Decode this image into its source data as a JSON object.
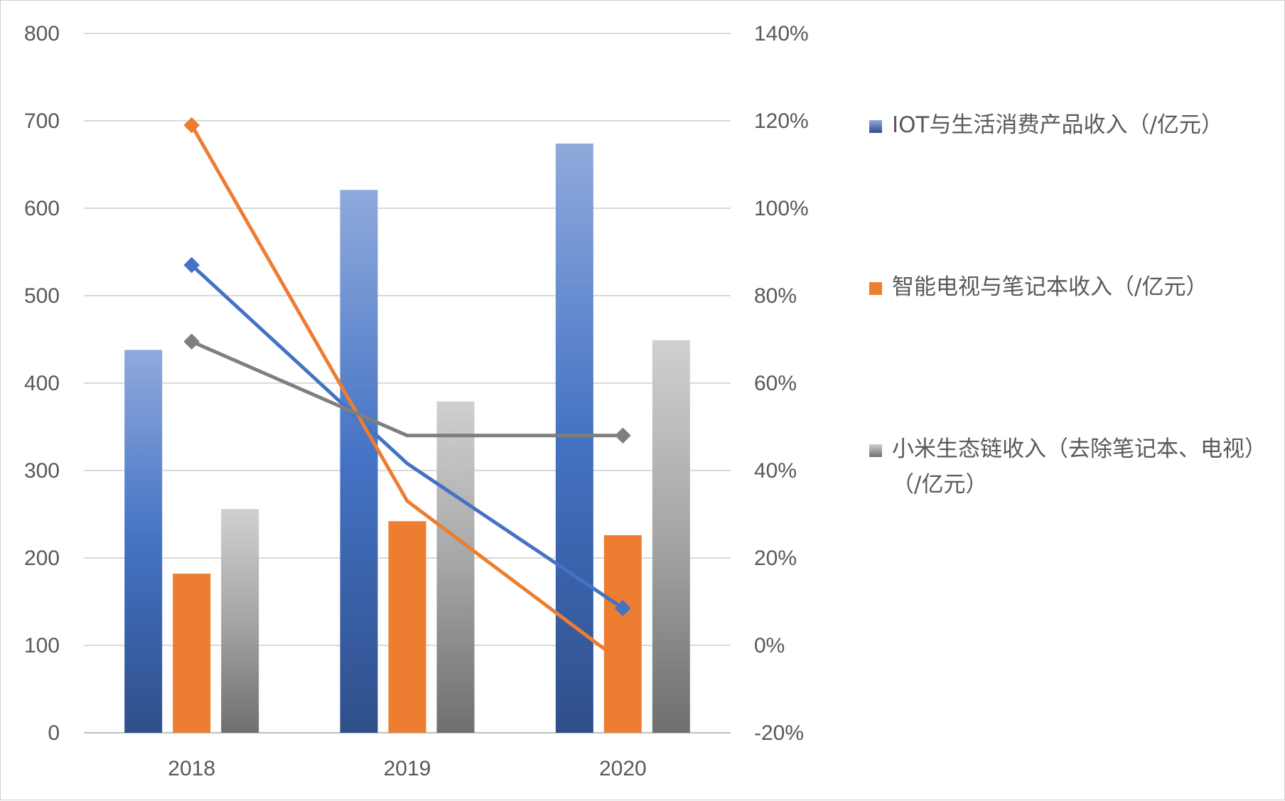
{
  "chart_data": {
    "type": "bar",
    "categories": [
      "2018",
      "2019",
      "2020"
    ],
    "y_left": {
      "min": 0,
      "max": 800,
      "step": 100,
      "ticks": [
        "0",
        "100",
        "200",
        "300",
        "400",
        "500",
        "600",
        "700",
        "800"
      ]
    },
    "y_right": {
      "min": -20,
      "max": 140,
      "step": 20,
      "ticks": [
        "-20%",
        "0%",
        "20%",
        "40%",
        "60%",
        "80%",
        "100%",
        "120%",
        "140%"
      ]
    },
    "grid": true,
    "legend_position": "right",
    "series": [
      {
        "name": "IOT与生活消费产品收入（/亿元）",
        "kind": "bar",
        "values": [
          438,
          621,
          674
        ],
        "color": "#4472c4"
      },
      {
        "name": "智能电视与笔记本收入（/亿元）",
        "kind": "bar",
        "values": [
          182,
          242,
          226
        ],
        "color": "#ed7d31"
      },
      {
        "name": "小米生态链收入（去除笔记本、电视）（/亿元）",
        "kind": "bar",
        "values": [
          256,
          379,
          449
        ],
        "color": "#a5a5a5"
      }
    ],
    "lines": [
      {
        "values": [
          87.0,
          41.6,
          8.5
        ],
        "color": "#4472c4"
      },
      {
        "values": [
          119.0,
          33.0,
          -4.0
        ],
        "color": "#ed7d31"
      },
      {
        "values": [
          69.5,
          48.0,
          48.0
        ],
        "color": "#7f7f7f"
      }
    ]
  }
}
